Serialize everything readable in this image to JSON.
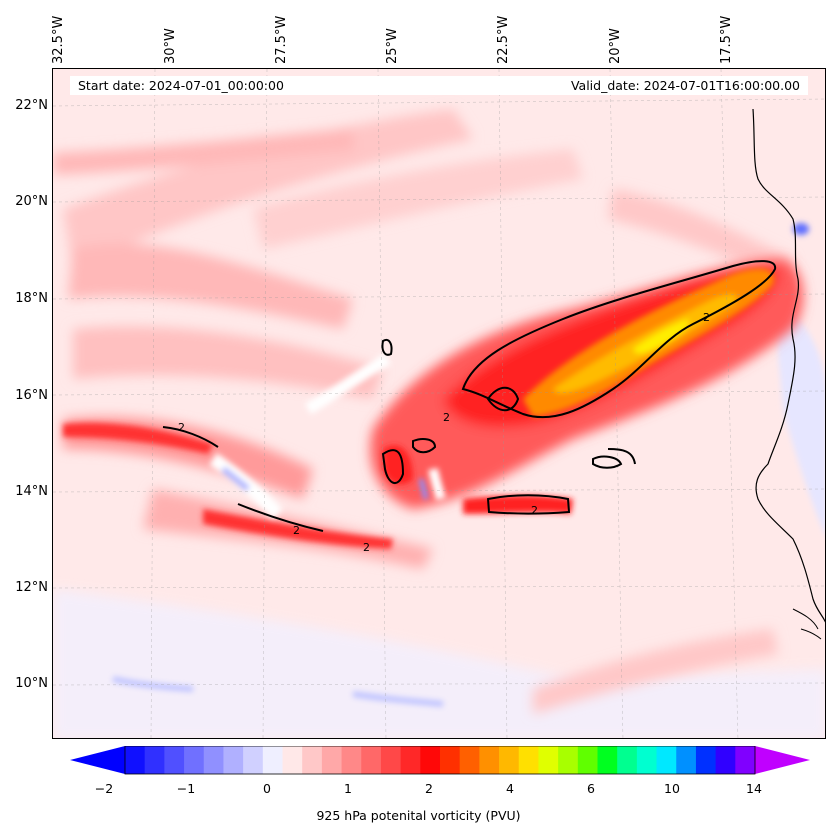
{
  "lon_labels": [
    "32.5°W",
    "30°W",
    "27.5°W",
    "25°W",
    "22.5°W",
    "20°W",
    "17.5°W"
  ],
  "lat_labels": [
    "22°N",
    "20°N",
    "18°N",
    "16°N",
    "14°N",
    "12°N",
    "10°N"
  ],
  "info": {
    "start": "Start date: 2024-07-01_00:00:00",
    "valid": "Valid_date: 2024-07-01T16:00:00.00"
  },
  "colorbar": {
    "ticks": [
      "−2",
      "−1",
      "0",
      "1",
      "2",
      "4",
      "6",
      "10",
      "14"
    ],
    "label": "925 hPa potenital vorticity (PVU)",
    "colors": [
      "#1010ff",
      "#3030ff",
      "#5050ff",
      "#7070ff",
      "#9090ff",
      "#b0b0ff",
      "#d0d0ff",
      "#efefff",
      "#ffe8e8",
      "#ffc8c8",
      "#ffa8a8",
      "#ff8888",
      "#ff6868",
      "#ff4848",
      "#ff2828",
      "#ff0808",
      "#ff3000",
      "#ff6000",
      "#ff9000",
      "#ffb800",
      "#ffe000",
      "#e0ff00",
      "#a8ff00",
      "#60ff00",
      "#00ff20",
      "#00ff90",
      "#00ffd0",
      "#00e8ff",
      "#0090ff",
      "#0030ff",
      "#3000ff",
      "#8000ff"
    ],
    "under_color": "#0000ff",
    "over_color": "#c000ff"
  },
  "contour_label": "2"
}
